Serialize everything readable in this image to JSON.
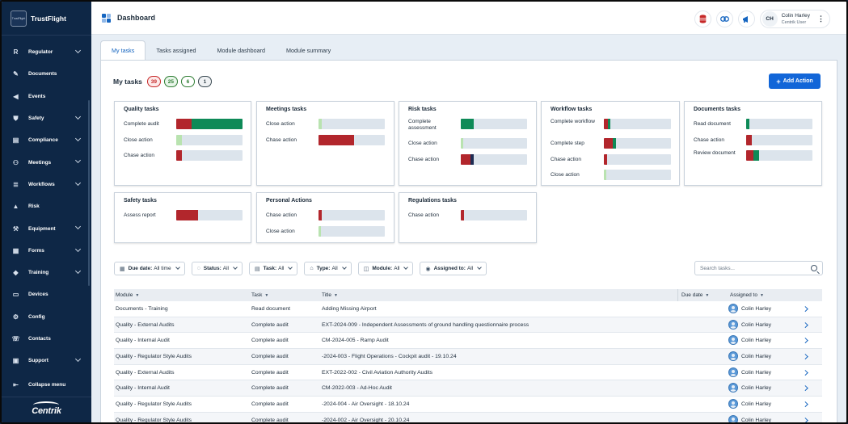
{
  "brand": {
    "name": "TrustFlight",
    "logo_text": "TrustFlight",
    "footer_logo": "Centrik"
  },
  "sidebar": {
    "items": [
      {
        "label": "Regulator",
        "icon": "regulator-letter-icon",
        "glyph": "R",
        "chevron": true
      },
      {
        "label": "Documents",
        "icon": "paperclip-icon",
        "glyph": "✎",
        "chevron": false
      },
      {
        "label": "Events",
        "icon": "megaphone-icon",
        "glyph": "◀",
        "chevron": false
      },
      {
        "label": "Safety",
        "icon": "shield-icon",
        "glyph": "⛊",
        "chevron": true
      },
      {
        "label": "Compliance",
        "icon": "clipboard-icon",
        "glyph": "▤",
        "chevron": true
      },
      {
        "label": "Meetings",
        "icon": "people-icon",
        "glyph": "⚇",
        "chevron": true
      },
      {
        "label": "Workflows",
        "icon": "workflow-icon",
        "glyph": "≣",
        "chevron": true
      },
      {
        "label": "Risk",
        "icon": "warning-icon",
        "glyph": "▲",
        "chevron": false
      },
      {
        "label": "Equipment",
        "icon": "wrench-icon",
        "glyph": "⚒",
        "chevron": true
      },
      {
        "label": "Forms",
        "icon": "form-icon",
        "glyph": "▦",
        "chevron": true
      },
      {
        "label": "Training",
        "icon": "graduation-cap-icon",
        "glyph": "◆",
        "chevron": true
      },
      {
        "label": "Devices",
        "icon": "device-icon",
        "glyph": "▭",
        "chevron": false
      },
      {
        "label": "Config",
        "icon": "config-icon",
        "glyph": "⚙",
        "chevron": false
      },
      {
        "label": "Contacts",
        "icon": "contacts-icon",
        "glyph": "☏",
        "chevron": false
      },
      {
        "label": "Support",
        "icon": "support-icon",
        "glyph": "▣",
        "chevron": true
      },
      {
        "label": "Collapse menu",
        "icon": "collapse-menu-icon",
        "glyph": "⇤",
        "chevron": false
      }
    ]
  },
  "header": {
    "title": "Dashboard",
    "user": {
      "initials": "CH",
      "name": "Colin Harley",
      "role": "Centrik User"
    }
  },
  "tabs": [
    {
      "label": "My tasks",
      "active": true
    },
    {
      "label": "Tasks assigned",
      "active": false
    },
    {
      "label": "Module dashboard",
      "active": false
    },
    {
      "label": "Module summary",
      "active": false
    }
  ],
  "my_tasks": {
    "label": "My tasks",
    "counts": [
      {
        "value": "39",
        "color": "#c62828",
        "bg": "#fdeaea"
      },
      {
        "value": "25",
        "color": "#2e7d32",
        "bg": "#e8f5e9"
      },
      {
        "value": "6",
        "color": "#2e7d32",
        "bg": "#ffffff"
      },
      {
        "value": "1",
        "color": "#37474f",
        "bg": "#f0f2f4"
      }
    ],
    "add_button": "Add Action"
  },
  "colors": {
    "red": "#b2262c",
    "dark_red": "#8b1a1f",
    "green": "#0e8a57",
    "light_green": "#b9e3b0",
    "track": "#dce4ec",
    "navy": "#1f2d54"
  },
  "summary_cards": [
    {
      "title": "Quality tasks",
      "rows": [
        {
          "label": "Complete audit",
          "segments": [
            {
              "f": 0.23,
              "c": "red"
            },
            {
              "f": 0.77,
              "c": "green"
            }
          ]
        },
        {
          "label": "Close action",
          "segments": [
            {
              "f": 0.09,
              "c": "light_green"
            }
          ]
        },
        {
          "label": "Chase action",
          "segments": [
            {
              "f": 0.09,
              "c": "red"
            }
          ]
        }
      ]
    },
    {
      "title": "Meetings tasks",
      "rows": [
        {
          "label": "Close action",
          "segments": [
            {
              "f": 0.05,
              "c": "light_green"
            }
          ]
        },
        {
          "label": "Chase action",
          "segments": [
            {
              "f": 0.53,
              "c": "red"
            }
          ]
        }
      ]
    },
    {
      "title": "Risk tasks",
      "rows": [
        {
          "label": "Complete assessment",
          "segments": [
            {
              "f": 0.2,
              "c": "green"
            }
          ]
        },
        {
          "label": "Close action",
          "segments": [
            {
              "f": 0.04,
              "c": "light_green"
            }
          ]
        },
        {
          "label": "Chase action",
          "segments": [
            {
              "f": 0.15,
              "c": "red"
            },
            {
              "f": 0.04,
              "c": "navy"
            }
          ]
        }
      ]
    },
    {
      "title": "Workflow tasks",
      "rows": [
        {
          "label": "Complete workflow",
          "segments": [
            {
              "f": 0.06,
              "c": "red"
            },
            {
              "f": 0.04,
              "c": "green"
            }
          ]
        },
        {
          "label": "Complete step",
          "segments": [
            {
              "f": 0.14,
              "c": "red"
            },
            {
              "f": 0.05,
              "c": "green"
            }
          ]
        },
        {
          "label": "Chase action",
          "segments": [
            {
              "f": 0.05,
              "c": "red"
            }
          ]
        },
        {
          "label": "Close action",
          "segments": [
            {
              "f": 0.04,
              "c": "light_green"
            }
          ]
        }
      ]
    },
    {
      "title": "Documents tasks",
      "rows": [
        {
          "label": "Read document",
          "segments": [
            {
              "f": 0.05,
              "c": "green"
            }
          ]
        },
        {
          "label": "Chase action",
          "segments": [
            {
              "f": 0.09,
              "c": "red"
            }
          ]
        },
        {
          "label": "Review document",
          "segments": [
            {
              "f": 0.11,
              "c": "red"
            },
            {
              "f": 0.09,
              "c": "green"
            }
          ]
        }
      ]
    },
    {
      "title": "Safety tasks",
      "rows": [
        {
          "label": "Assess report",
          "segments": [
            {
              "f": 0.33,
              "c": "red"
            }
          ]
        }
      ]
    },
    {
      "title": "Personal Actions",
      "rows": [
        {
          "label": "Chase action",
          "segments": [
            {
              "f": 0.05,
              "c": "red"
            }
          ]
        },
        {
          "label": "Close action",
          "segments": [
            {
              "f": 0.04,
              "c": "light_green"
            }
          ]
        }
      ]
    },
    {
      "title": "Regulations tasks",
      "rows": [
        {
          "label": "Chase action",
          "segments": [
            {
              "f": 0.05,
              "c": "red"
            }
          ]
        }
      ]
    }
  ],
  "filters": [
    {
      "label": "Due date:",
      "value": "All time",
      "icon": "calendar-icon",
      "glyph": "▦"
    },
    {
      "label": "Status:",
      "value": "All",
      "icon": "status-icon",
      "glyph": "◌"
    },
    {
      "label": "Task:",
      "value": "All",
      "icon": "task-icon",
      "glyph": "▤"
    },
    {
      "label": "Type:",
      "value": "All",
      "icon": "tag-icon",
      "glyph": "⌂"
    },
    {
      "label": "Module:",
      "value": "All",
      "icon": "module-icon",
      "glyph": "◫"
    },
    {
      "label": "Assigned to:",
      "value": "All",
      "icon": "user-icon",
      "glyph": "◉"
    }
  ],
  "search": {
    "placeholder": "Search tasks..."
  },
  "table": {
    "columns": [
      "Module",
      "Task",
      "Title",
      "Due date",
      "Assigned to"
    ],
    "rows": [
      {
        "module": "Documents - Training",
        "task": "Read document",
        "title": "Adding Missing Airport",
        "due": "",
        "assigned": "Colin Harley"
      },
      {
        "module": "Quality - External Audits",
        "task": "Complete audit",
        "title": "EXT-2024-009 - Independent Assessments of ground handling questionnaire process",
        "due": "",
        "assigned": "Colin Harley"
      },
      {
        "module": "Quality - Internal Audit",
        "task": "Complete audit",
        "title": "CM-2024-005 - Ramp Audit",
        "due": "",
        "assigned": "Colin Harley"
      },
      {
        "module": "Quality - Regulator Style Audits",
        "task": "Complete audit",
        "title": "-2024-003 - Flight Operations - Cockpit audit - 19.10.24",
        "due": "",
        "assigned": "Colin Harley"
      },
      {
        "module": "Quality - External Audits",
        "task": "Complete audit",
        "title": "EXT-2022-002 - Civil Aviation Authority Audits",
        "due": "",
        "assigned": "Colin Harley"
      },
      {
        "module": "Quality - Internal Audit",
        "task": "Complete audit",
        "title": "CM-2022-003 - Ad-Hoc Audit",
        "due": "",
        "assigned": "Colin Harley"
      },
      {
        "module": "Quality - Regulator Style Audits",
        "task": "Complete audit",
        "title": "-2024-004 - Air Oversight - 18.10.24",
        "due": "",
        "assigned": "Colin Harley"
      },
      {
        "module": "Quality - Regulator Style Audits",
        "task": "Complete audit",
        "title": "-2024-002 - Air Oversight - 20.10.24",
        "due": "",
        "assigned": "Colin Harley"
      }
    ]
  }
}
